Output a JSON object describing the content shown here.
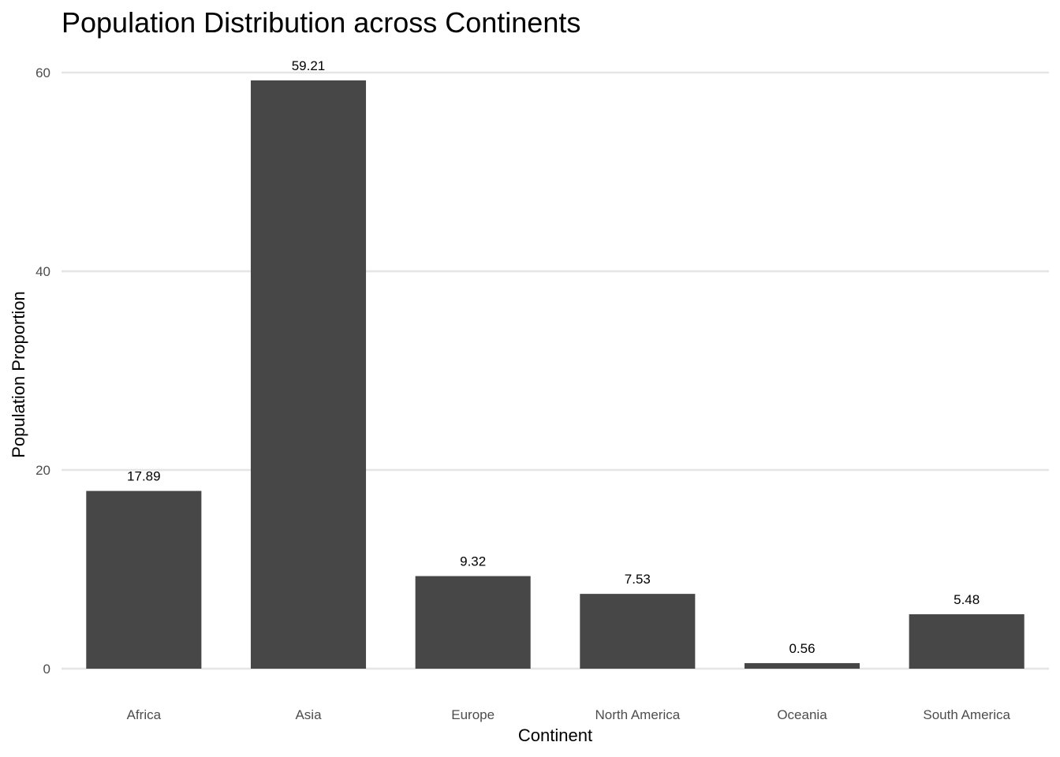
{
  "chart_data": {
    "type": "bar",
    "title": "Population Distribution across Continents",
    "xlabel": "Continent",
    "ylabel": "Population Proportion",
    "categories": [
      "Africa",
      "Asia",
      "Europe",
      "North America",
      "Oceania",
      "South America"
    ],
    "values": [
      17.89,
      59.21,
      9.32,
      7.53,
      0.56,
      5.48
    ],
    "data_labels": [
      "17.89",
      "59.21",
      "9.32",
      "7.53",
      "0.56",
      "5.48"
    ],
    "y_ticks": [
      0,
      20,
      40,
      60
    ],
    "y_tick_labels": [
      "0",
      "20",
      "40",
      "60"
    ],
    "ylim": [
      0,
      60
    ],
    "grid": true,
    "legend": "none",
    "colors": {
      "bar": "#474747",
      "grid": "#e5e5e5",
      "tick_text": "#4d4d4d",
      "label_text": "#000000"
    }
  }
}
